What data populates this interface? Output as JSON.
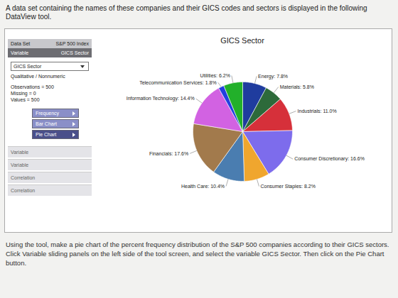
{
  "intro": "A data set containing the names of these companies and their GICS codes and sectors is displayed in the following DataView tool.",
  "tool": {
    "data_set": {
      "label": "Data Set",
      "value": "S&P 500 Index"
    },
    "variable": {
      "label": "Variable",
      "value": "GICS Sector"
    },
    "selector": "GICS Sector",
    "variable_type": "Qualitative / Nonnumeric",
    "stats": [
      "Observations = 500",
      "Missing = 0",
      "Values = 500"
    ],
    "buttons": [
      "Frequency",
      "Bar Chart",
      "Pie Chart"
    ],
    "active_button": "Pie Chart",
    "panels": [
      "Variable",
      "Variable",
      "Correlation",
      "Correlation"
    ]
  },
  "chart_data": {
    "type": "pie",
    "title": "GICS Sector",
    "categories": [
      "Energy",
      "Materials",
      "Industrials",
      "Consumer Discretionary",
      "Consumer Staples",
      "Health Care",
      "Financials",
      "Information Technology",
      "Telecommunication Services",
      "Utilities"
    ],
    "values": [
      7.8,
      5.8,
      11.0,
      16.6,
      8.2,
      10.4,
      17.6,
      14.4,
      1.8,
      6.2
    ],
    "value_labels": [
      "Energy: 7.8%",
      "Materials: 5.8%",
      "Industrials: 11.0%",
      "Consumer Discretionary: 16.6%",
      "Consumer Staples: 8.2%",
      "Health Care: 10.4%",
      "Financials: 17.6%",
      "Information Technology: 14.4%",
      "Telecommunication Services: 1.8%",
      "Utilities: 6.2%"
    ],
    "colors": [
      "#1f3c9e",
      "#2d6a3a",
      "#d6303a",
      "#7d6cec",
      "#f0a62e",
      "#4a7db0",
      "#a27a4c",
      "#d262e2",
      "#2240e0",
      "#22b02a"
    ],
    "data_labels": true
  },
  "instructions": "Using the tool, make a pie chart of the percent frequency distribution of the S&P 500 companies according to their GICS sectors. Click Variable sliding panels on the left side of the tool screen, and select the variable GICS Sector. Then click on the Pie Chart button."
}
